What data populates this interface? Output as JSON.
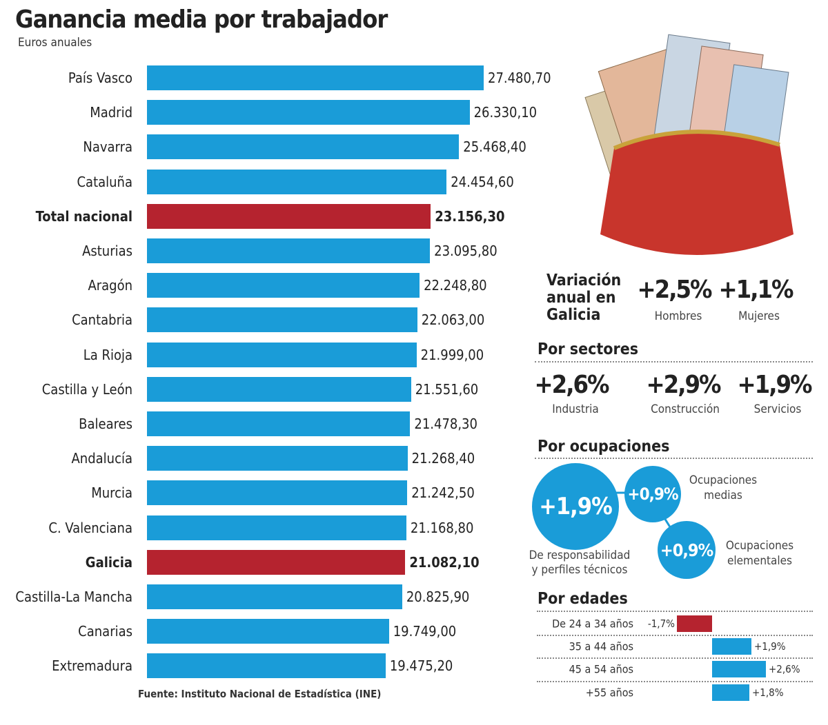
{
  "chart_data": [
    {
      "type": "bar",
      "orientation": "horizontal",
      "title": "Ganancia media por trabajador",
      "subtitle": "Euros anuales",
      "categories": [
        "País Vasco",
        "Madrid",
        "Navarra",
        "Cataluña",
        "Total nacional",
        "Asturias",
        "Aragón",
        "Cantabria",
        "La Rioja",
        "Castilla y León",
        "Baleares",
        "Andalucía",
        "Murcia",
        "C. Valenciana",
        "Galicia",
        "Castilla-La Mancha",
        "Canarias",
        "Extremadura"
      ],
      "values": [
        27480.7,
        26330.1,
        25468.4,
        24454.6,
        23156.3,
        23095.8,
        22248.8,
        22063.0,
        21999.0,
        21551.6,
        21478.3,
        21268.4,
        21242.5,
        21168.8,
        21082.1,
        20825.9,
        19749.0,
        19475.2
      ],
      "value_labels": [
        "27.480,70",
        "26.330,10",
        "25.468,40",
        "24.454,60",
        "23.156,30",
        "23.095,80",
        "22.248,80",
        "22.063,00",
        "21.999,00",
        "21.551,60",
        "21.478,30",
        "21.268,40",
        "21.242,50",
        "21.168,80",
        "21.082,10",
        "20.825,90",
        "19.749,00",
        "19.475,20"
      ],
      "highlight": [
        "Total nacional",
        "Galicia"
      ],
      "xlim": [
        0,
        27480.7
      ],
      "grid": false,
      "colors": {
        "default": "#1a9cd8",
        "highlight": "#b5232f"
      },
      "source": "Fuente: Instituto Nacional de Estadística (INE)"
    },
    {
      "type": "bar",
      "orientation": "horizontal",
      "title": "Por edades",
      "categories": [
        "De 24 a 34 años",
        "35 a 44 años",
        "45 a 54 años",
        "+55 años"
      ],
      "values": [
        -1.7,
        1.9,
        2.6,
        1.8
      ],
      "value_labels": [
        "-1,7%",
        "+1,9%",
        "+2,6%",
        "+1,8%"
      ],
      "colors": {
        "negative": "#b5232f",
        "positive": "#1a9cd8"
      }
    }
  ],
  "variacion": {
    "title_lines": [
      "Variación",
      "anual en",
      "Galicia"
    ],
    "items": [
      {
        "value": "+2,5%",
        "label": "Hombres"
      },
      {
        "value": "+1,1%",
        "label": "Mujeres"
      }
    ]
  },
  "sectores": {
    "title": "Por sectores",
    "items": [
      {
        "value": "+2,6%",
        "label": "Industria"
      },
      {
        "value": "+2,9%",
        "label": "Construcción"
      },
      {
        "value": "+1,9%",
        "label": "Servicios"
      }
    ]
  },
  "ocupaciones": {
    "title": "Por ocupaciones",
    "items": [
      {
        "value": "+1,9%",
        "label_lines": [
          "De responsabilidad",
          "y perfiles técnicos"
        ]
      },
      {
        "value": "+0,9%",
        "label_lines": [
          "Ocupaciones",
          "medias"
        ]
      },
      {
        "value": "+0,9%",
        "label_lines": [
          "Ocupaciones",
          "elementales"
        ]
      }
    ]
  },
  "illustration": "purse-with-euro-notes"
}
